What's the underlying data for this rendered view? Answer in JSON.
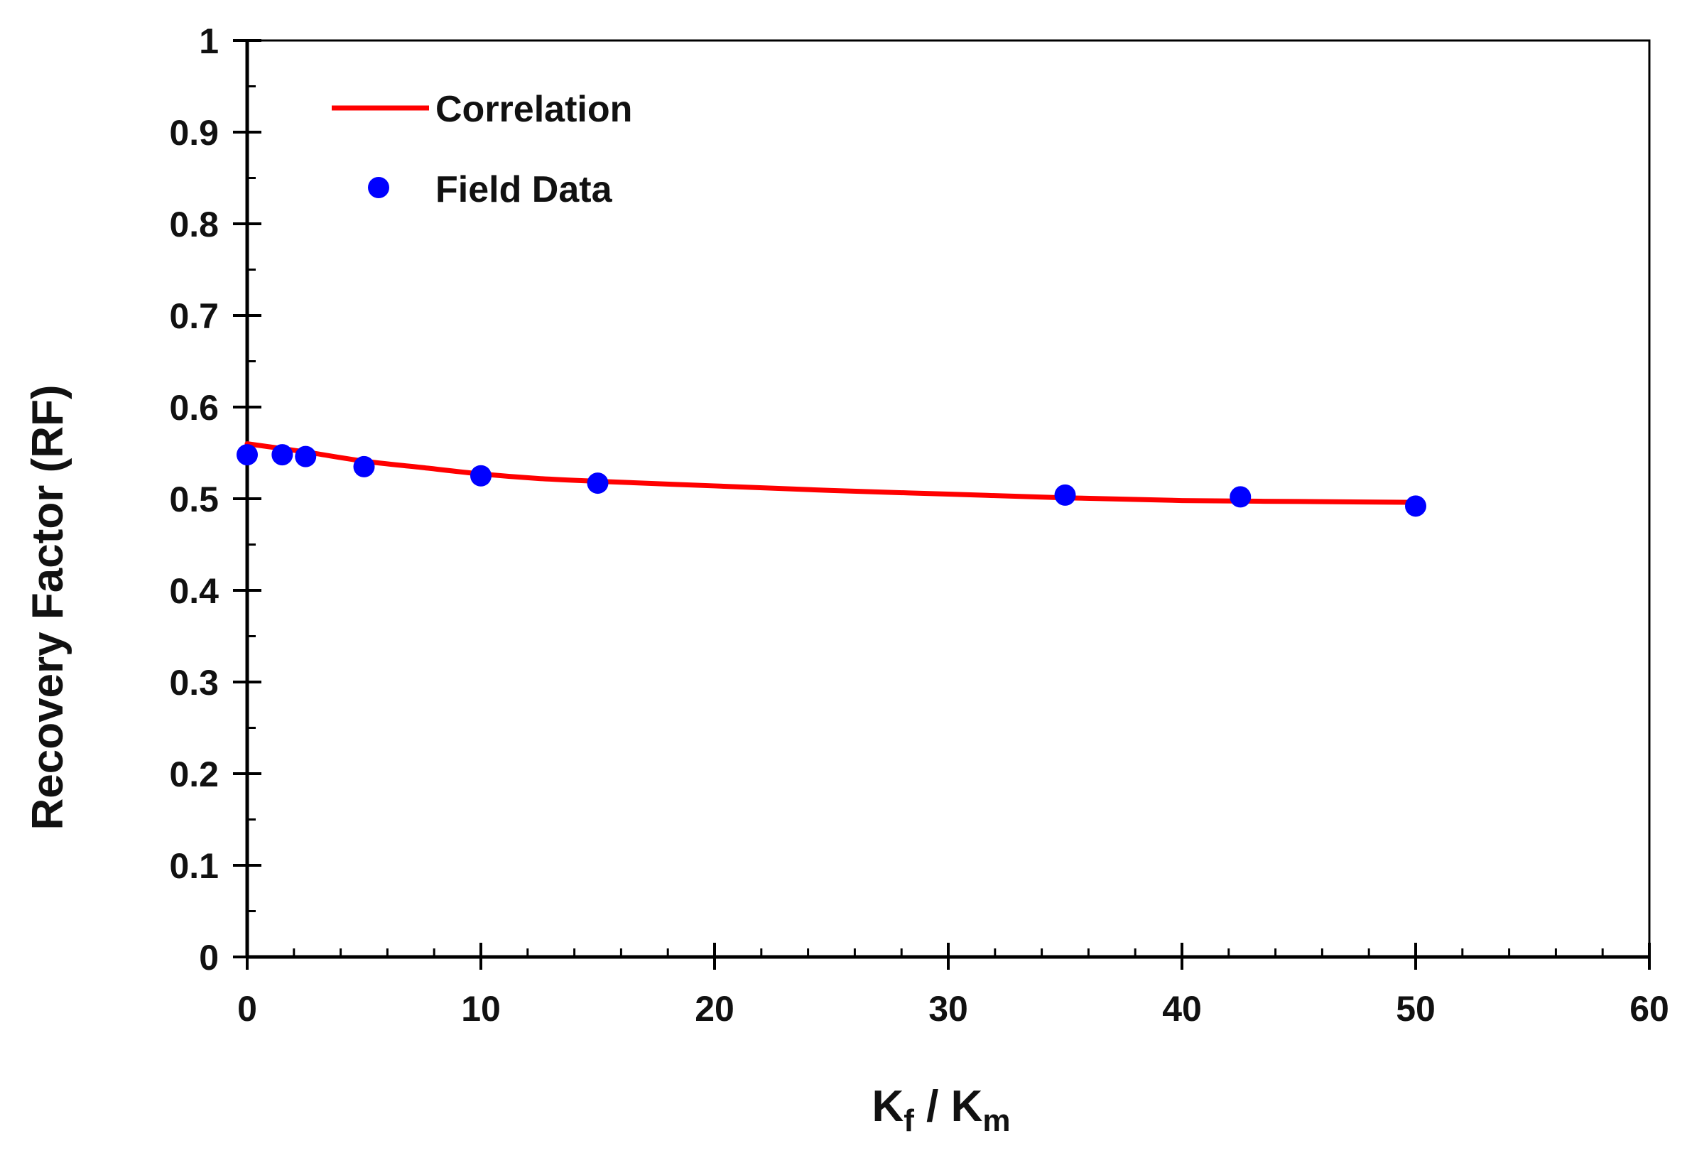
{
  "chart_data": {
    "type": "scatter",
    "title": "",
    "xlabel": {
      "main": "K",
      "sub1": "f",
      "sep": " / K",
      "sub2": "m"
    },
    "ylabel": "Recovery Factor (RF)",
    "xlim": [
      0,
      60
    ],
    "ylim": [
      0,
      1
    ],
    "x_ticks": [
      0,
      10,
      20,
      30,
      40,
      50,
      60
    ],
    "x_tick_labels": [
      "0",
      "10",
      "20",
      "30",
      "40",
      "50",
      "60"
    ],
    "y_ticks": [
      0,
      0.1,
      0.2,
      0.3,
      0.4,
      0.5,
      0.6,
      0.7,
      0.8,
      0.9,
      1
    ],
    "y_tick_labels": [
      "0",
      "0.1",
      "0.2",
      "0.3",
      "0.4",
      "0.5",
      "0.6",
      "0.7",
      "0.8",
      "0.9",
      "1"
    ],
    "x_minor_step": 2,
    "y_minor_step": 0.05,
    "grid": false,
    "legend_position": "top-left",
    "series": [
      {
        "name": "Correlation",
        "kind": "line",
        "color": "#ff0000",
        "x": [
          0,
          2.5,
          5,
          7.5,
          10,
          12.5,
          15,
          20,
          25,
          30,
          35,
          40,
          45,
          50
        ],
        "y": [
          0.56,
          0.551,
          0.541,
          0.534,
          0.527,
          0.522,
          0.519,
          0.514,
          0.509,
          0.505,
          0.501,
          0.498,
          0.497,
          0.496
        ]
      },
      {
        "name": "Field Data",
        "kind": "scatter",
        "color": "#0000ff",
        "x": [
          0,
          1.5,
          2.5,
          5,
          10,
          15,
          35,
          42.5,
          50
        ],
        "y": [
          0.548,
          0.548,
          0.546,
          0.535,
          0.525,
          0.517,
          0.504,
          0.502,
          0.492
        ]
      }
    ]
  }
}
